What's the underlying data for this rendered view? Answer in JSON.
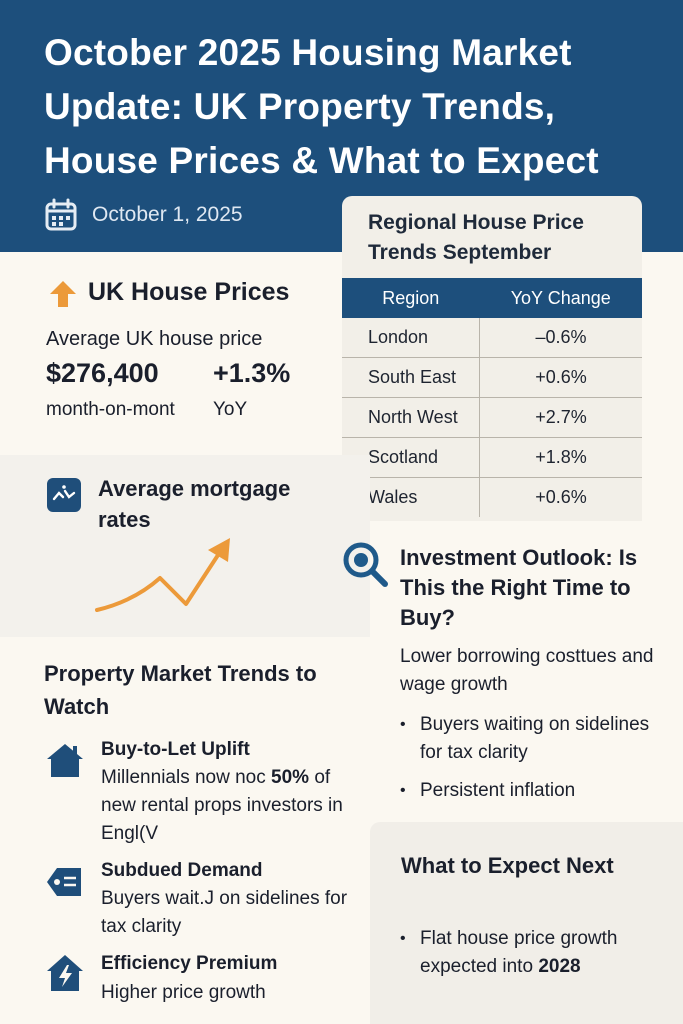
{
  "header": {
    "title": "October 2025 Housing Market Update: UK Property Trends, House Prices & What to Expect",
    "date": "October 1, 2025"
  },
  "regional": {
    "title": "Regional House Price Trends September",
    "columns": [
      "Region",
      "YoY Change"
    ],
    "rows": [
      {
        "region": "London",
        "change": "–0.6%"
      },
      {
        "region": "South East",
        "change": "+0.6%"
      },
      {
        "region": "North West",
        "change": "+2.7%"
      },
      {
        "region": "Scotland",
        "change": "+1.8%"
      },
      {
        "region": "Wales",
        "change": "+0.6%"
      }
    ]
  },
  "uk_prices": {
    "title": "UK House Prices",
    "average_label": "Average UK house price",
    "price": "$276,400",
    "yoy_value": "+1.3%",
    "mom_label": "month-on-mont",
    "yoy_label": "YoY"
  },
  "mortgage": {
    "title": "Average mortgage rates"
  },
  "investment": {
    "title": "Investment Outlook: Is This the Right Time to Buy?",
    "description": "Lower borrowing costtues and wage growth",
    "bullets": [
      "Buyers waiting on sidelines for tax clarity",
      "Persistent inflation"
    ]
  },
  "trends": {
    "title": "Property Market Trends to Watch",
    "items": [
      {
        "title": "Buy-to-Let Uplift",
        "body_prefix": "Millennials now noc ",
        "body_bold": "50%",
        "body_rest": " of new rental props investors in Engl(V"
      },
      {
        "title": "Subdued Demand",
        "body": "Buyers wait.J on  sidelines for tax clarity"
      },
      {
        "title": "Efficiency Premium",
        "body": "Higher price growth"
      }
    ]
  },
  "expect": {
    "title": "What to Expect Next",
    "bullet_prefix": "Flat house price growth expected into ",
    "bullet_bold": "2028"
  },
  "colors": {
    "header_bg": "#1d4f7c",
    "accent_orange": "#ec9a3a",
    "icon_blue": "#1f5a8a"
  },
  "icons": [
    "calendar-icon",
    "arrow-up-icon",
    "mortgage-icon",
    "search-icon",
    "house-icon",
    "tag-icon",
    "lightning-house-icon"
  ]
}
